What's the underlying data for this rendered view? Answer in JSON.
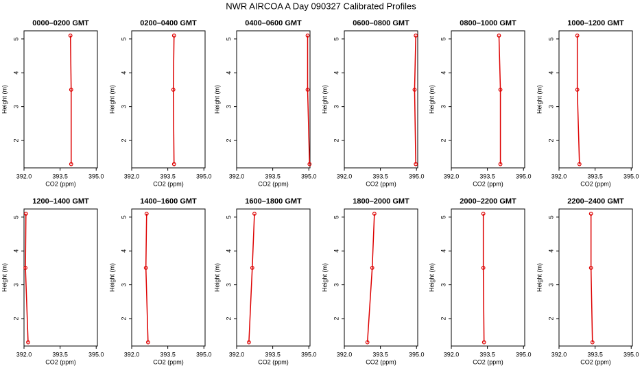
{
  "title": "NWR AIRCOA A  Day 090327  Calibrated Profiles",
  "chart_data": [
    {
      "type": "line",
      "title": "0000–0200 GMT",
      "xlabel": "CO2 (ppm)",
      "ylabel": "Height (m)",
      "color": "#dd0000",
      "xlim": [
        392,
        395.05
      ],
      "ylim": [
        1.19,
        5.24
      ],
      "xticks": [
        {
          "value": 392,
          "label": "392.0"
        },
        {
          "value": 393.5,
          "label": "393.5"
        },
        {
          "value": 395,
          "label": "395.0"
        }
      ],
      "yticks": [
        2,
        3,
        4,
        5
      ],
      "x": [
        393.96,
        393.96,
        393.93
      ],
      "values": [
        1.3,
        3.5,
        5.1
      ]
    },
    {
      "type": "line",
      "title": "0200–0400 GMT",
      "xlabel": "CO2 (ppm)",
      "ylabel": "Height (m)",
      "color": "#dd0000",
      "xlim": [
        392,
        395.05
      ],
      "ylim": [
        1.19,
        5.24
      ],
      "xticks": [
        {
          "value": 392,
          "label": "392.0"
        },
        {
          "value": 393.5,
          "label": "393.5"
        },
        {
          "value": 395,
          "label": "395.0"
        }
      ],
      "yticks": [
        2,
        3,
        4,
        5
      ],
      "x": [
        393.76,
        393.73,
        393.76
      ],
      "values": [
        1.3,
        3.5,
        5.1
      ]
    },
    {
      "type": "line",
      "title": "0400–0600 GMT",
      "xlabel": "CO2 (ppm)",
      "ylabel": "Height (m)",
      "color": "#dd0000",
      "xlim": [
        392,
        395.05
      ],
      "ylim": [
        1.19,
        5.24
      ],
      "xticks": [
        {
          "value": 392,
          "label": "392.0"
        },
        {
          "value": 393.5,
          "label": "393.5"
        },
        {
          "value": 395,
          "label": "395.0"
        }
      ],
      "yticks": [
        2,
        3,
        4,
        5
      ],
      "x": [
        395.03,
        394.95,
        394.95
      ],
      "values": [
        1.3,
        3.5,
        5.1
      ]
    },
    {
      "type": "line",
      "title": "0600–0800 GMT",
      "xlabel": "CO2 (ppm)",
      "ylabel": "Height (m)",
      "color": "#dd0000",
      "xlim": [
        392,
        395.05
      ],
      "ylim": [
        1.19,
        5.24
      ],
      "xticks": [
        {
          "value": 392,
          "label": "392.0"
        },
        {
          "value": 393.5,
          "label": "393.5"
        },
        {
          "value": 395,
          "label": "395.0"
        }
      ],
      "yticks": [
        2,
        3,
        4,
        5
      ],
      "x": [
        394.97,
        394.92,
        394.97
      ],
      "values": [
        1.3,
        3.5,
        5.1
      ]
    },
    {
      "type": "line",
      "title": "0800–1000 GMT",
      "xlabel": "CO2 (ppm)",
      "ylabel": "Height (m)",
      "color": "#dd0000",
      "xlim": [
        392,
        395.05
      ],
      "ylim": [
        1.19,
        5.24
      ],
      "xticks": [
        {
          "value": 392,
          "label": "392.0"
        },
        {
          "value": 393.5,
          "label": "393.5"
        },
        {
          "value": 395,
          "label": "395.0"
        }
      ],
      "yticks": [
        2,
        3,
        4,
        5
      ],
      "x": [
        394.04,
        394.04,
        393.98
      ],
      "values": [
        1.3,
        3.5,
        5.1
      ]
    },
    {
      "type": "line",
      "title": "1000–1200 GMT",
      "xlabel": "CO2 (ppm)",
      "ylabel": "Height (m)",
      "color": "#dd0000",
      "xlim": [
        392,
        395.05
      ],
      "ylim": [
        1.19,
        5.24
      ],
      "xticks": [
        {
          "value": 392,
          "label": "392.0"
        },
        {
          "value": 393.5,
          "label": "393.5"
        },
        {
          "value": 395,
          "label": "395.0"
        }
      ],
      "yticks": [
        2,
        3,
        4,
        5
      ],
      "x": [
        392.85,
        392.76,
        392.76
      ],
      "values": [
        1.3,
        3.5,
        5.1
      ]
    },
    {
      "type": "line",
      "title": "1200–1400 GMT",
      "xlabel": "CO2 (ppm)",
      "ylabel": "Height (m)",
      "color": "#dd0000",
      "xlim": [
        392,
        395.05
      ],
      "ylim": [
        1.19,
        5.24
      ],
      "xticks": [
        {
          "value": 392,
          "label": "392.0"
        },
        {
          "value": 393.5,
          "label": "393.5"
        },
        {
          "value": 395,
          "label": "395.0"
        }
      ],
      "yticks": [
        2,
        3,
        4,
        5
      ],
      "x": [
        392.17,
        392.06,
        392.08
      ],
      "values": [
        1.3,
        3.5,
        5.1
      ]
    },
    {
      "type": "line",
      "title": "1400–1600 GMT",
      "xlabel": "CO2 (ppm)",
      "ylabel": "Height (m)",
      "color": "#dd0000",
      "xlim": [
        392,
        395.05
      ],
      "ylim": [
        1.19,
        5.24
      ],
      "xticks": [
        {
          "value": 392,
          "label": "392.0"
        },
        {
          "value": 393.5,
          "label": "393.5"
        },
        {
          "value": 395,
          "label": "395.0"
        }
      ],
      "yticks": [
        2,
        3,
        4,
        5
      ],
      "x": [
        392.68,
        392.59,
        392.62
      ],
      "values": [
        1.3,
        3.5,
        5.1
      ]
    },
    {
      "type": "line",
      "title": "1600–1800 GMT",
      "xlabel": "CO2 (ppm)",
      "ylabel": "Height (m)",
      "color": "#dd0000",
      "xlim": [
        392,
        395.05
      ],
      "ylim": [
        1.19,
        5.24
      ],
      "xticks": [
        {
          "value": 392,
          "label": "392.0"
        },
        {
          "value": 393.5,
          "label": "393.5"
        },
        {
          "value": 395,
          "label": "395.0"
        }
      ],
      "yticks": [
        2,
        3,
        4,
        5
      ],
      "x": [
        392.51,
        392.65,
        392.74
      ],
      "values": [
        1.3,
        3.5,
        5.1
      ]
    },
    {
      "type": "line",
      "title": "1800–2000 GMT",
      "xlabel": "CO2 (ppm)",
      "ylabel": "Height (m)",
      "color": "#dd0000",
      "xlim": [
        392,
        395.05
      ],
      "ylim": [
        1.19,
        5.24
      ],
      "xticks": [
        {
          "value": 392,
          "label": "392.0"
        },
        {
          "value": 393.5,
          "label": "393.5"
        },
        {
          "value": 395,
          "label": "395.0"
        }
      ],
      "yticks": [
        2,
        3,
        4,
        5
      ],
      "x": [
        392.96,
        393.16,
        393.25
      ],
      "values": [
        1.3,
        3.5,
        5.1
      ]
    },
    {
      "type": "line",
      "title": "2000–2200 GMT",
      "xlabel": "CO2 (ppm)",
      "ylabel": "Height (m)",
      "color": "#dd0000",
      "xlim": [
        392,
        395.05
      ],
      "ylim": [
        1.19,
        5.24
      ],
      "xticks": [
        {
          "value": 392,
          "label": "392.0"
        },
        {
          "value": 393.5,
          "label": "393.5"
        },
        {
          "value": 395,
          "label": "395.0"
        }
      ],
      "yticks": [
        2,
        3,
        4,
        5
      ],
      "x": [
        393.36,
        393.33,
        393.33
      ],
      "values": [
        1.3,
        3.5,
        5.1
      ]
    },
    {
      "type": "line",
      "title": "2200–2400 GMT",
      "xlabel": "CO2 (ppm)",
      "ylabel": "Height (m)",
      "color": "#dd0000",
      "xlim": [
        392,
        395.05
      ],
      "ylim": [
        1.19,
        5.24
      ],
      "xticks": [
        {
          "value": 392,
          "label": "392.0"
        },
        {
          "value": 393.5,
          "label": "393.5"
        },
        {
          "value": 395,
          "label": "395.0"
        }
      ],
      "yticks": [
        2,
        3,
        4,
        5
      ],
      "x": [
        393.39,
        393.33,
        393.33
      ],
      "values": [
        1.3,
        3.5,
        5.1
      ]
    }
  ]
}
